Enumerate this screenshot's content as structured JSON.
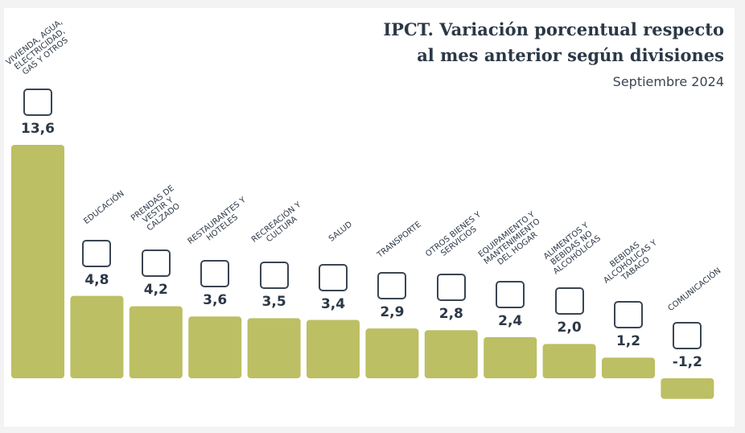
{
  "chart_data": {
    "type": "bar",
    "title": [
      "IPCT. Variación porcentual respecto",
      "al mes anterior según divisiones"
    ],
    "subtitle": "Septiembre 2024",
    "categories": [
      "VIVIENDA, AGUA, ELECTRICIDAD, GAS Y OTROS",
      "EDUCACIÓN",
      "PRENDAS DE VESTIR Y CALZADO",
      "RESTAURANTES Y HOTELES",
      "RECREACIÓN Y CULTURA",
      "SALUD",
      "TRANSPORTE",
      "OTROS BIENES Y SERVICIOS",
      "EQUIPAMIENTO Y MANTENIMIENTO DEL HOGAR",
      "ALIMENTOS Y BEBIDAS NO ALCOHÓLICAS",
      "BEBIDAS ALCOHÓLICAS Y TABACO",
      "COMUNICACIÓN"
    ],
    "values": [
      13.6,
      4.8,
      4.2,
      3.6,
      3.5,
      3.4,
      2.9,
      2.8,
      2.4,
      2.0,
      1.2,
      -1.2
    ],
    "value_labels": [
      "13,6",
      "4,8",
      "4,2",
      "3,6",
      "3,5",
      "3,4",
      "2,9",
      "2,8",
      "2,4",
      "2,0",
      "1,2",
      "-1,2"
    ],
    "color": "#bcbf63"
  }
}
